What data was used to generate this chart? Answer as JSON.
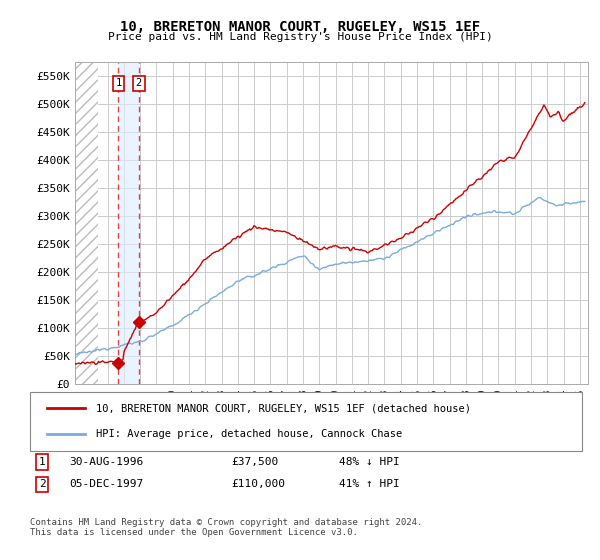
{
  "title": "10, BRERETON MANOR COURT, RUGELEY, WS15 1EF",
  "subtitle": "Price paid vs. HM Land Registry's House Price Index (HPI)",
  "ylim": [
    0,
    575000
  ],
  "yticks": [
    0,
    50000,
    100000,
    150000,
    200000,
    250000,
    300000,
    350000,
    400000,
    450000,
    500000,
    550000
  ],
  "ytick_labels": [
    "£0",
    "£50K",
    "£100K",
    "£150K",
    "£200K",
    "£250K",
    "£300K",
    "£350K",
    "£400K",
    "£450K",
    "£500K",
    "£550K"
  ],
  "xlim_start": 1994.0,
  "xlim_end": 2025.5,
  "transaction1_date": 1996.664,
  "transaction1_price": 37500,
  "transaction1_label": "1",
  "transaction2_date": 1997.921,
  "transaction2_price": 110000,
  "transaction2_label": "2",
  "line1_color": "#cc0000",
  "line2_color": "#7aaddc",
  "marker_color": "#cc0000",
  "vline_color": "#dd4444",
  "legend1_label": "10, BRERETON MANOR COURT, RUGELEY, WS15 1EF (detached house)",
  "legend2_label": "HPI: Average price, detached house, Cannock Chase",
  "footnote": "Contains HM Land Registry data © Crown copyright and database right 2024.\nThis data is licensed under the Open Government Licence v3.0.",
  "grid_color": "#cccccc",
  "box_color": "#cc0000",
  "hatch_color": "#cccccc"
}
